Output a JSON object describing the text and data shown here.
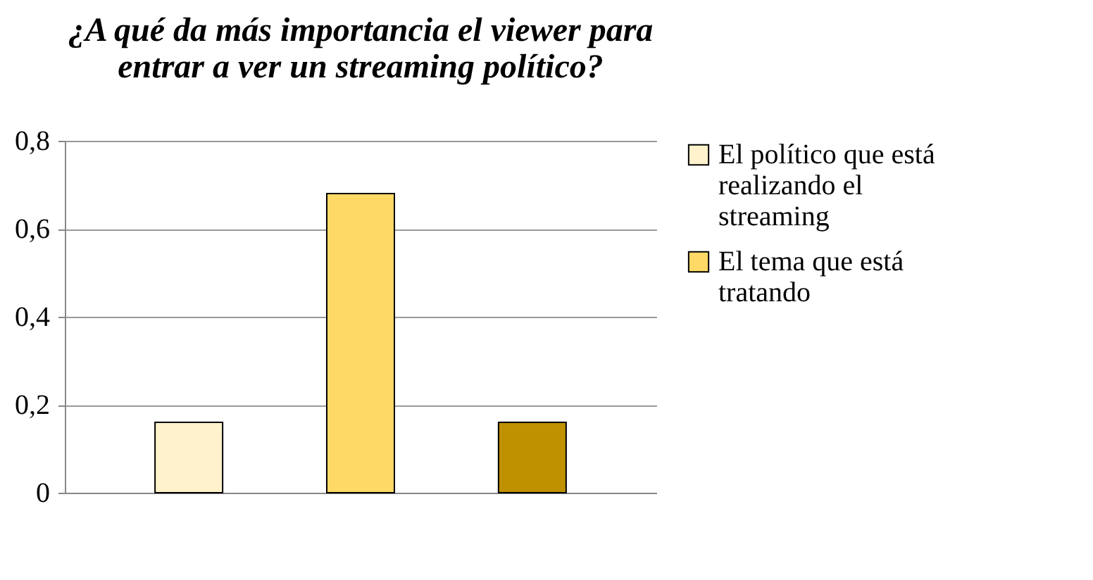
{
  "chart_data": {
    "type": "bar",
    "title": "¿A qué da más importancia el viewer para entrar a ver un streaming político?",
    "categories": [
      null
    ],
    "series": [
      {
        "name": "El político que está realizando el streaming",
        "color": "#fff2cc",
        "values": [
          0.16
        ]
      },
      {
        "name": "El tema que está tratando",
        "color": "#ffd966",
        "values": [
          0.68
        ]
      },
      {
        "color": "#bf9000",
        "values": [
          0.16
        ]
      }
    ],
    "ylim": [
      0,
      0.8
    ],
    "yticks": [
      0,
      {
        "value": 0.2,
        "label": "0,2"
      },
      {
        "value": 0.4,
        "label": "0,4"
      },
      {
        "value": 0.6,
        "label": "0,6"
      },
      {
        "value": 0.8,
        "label": "0,8"
      }
    ],
    "grid": "y",
    "legend": "right"
  }
}
